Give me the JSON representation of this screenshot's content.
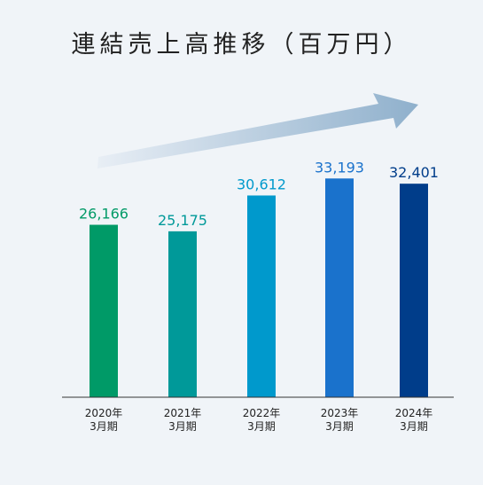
{
  "chart_data": {
    "type": "bar",
    "title": "連結売上高推移（百万円）",
    "categories": [
      [
        "2020年",
        "3月期"
      ],
      [
        "2021年",
        "3月期"
      ],
      [
        "2022年",
        "3月期"
      ],
      [
        "2023年",
        "3月期"
      ],
      [
        "2024年",
        "3月期"
      ]
    ],
    "values": [
      26166,
      25175,
      30612,
      33193,
      32401
    ],
    "value_labels": [
      "26,166",
      "25,175",
      "30,612",
      "33,193",
      "32,401"
    ],
    "bar_colors": [
      "#009a67",
      "#009999",
      "#0099cc",
      "#1a72cc",
      "#003d8a"
    ],
    "label_colors": [
      "#009a67",
      "#009999",
      "#0099cc",
      "#1a72cc",
      "#003d8a"
    ],
    "ylim": [
      0,
      37000
    ],
    "grid": false,
    "trend_arrow": {
      "from_color": "#e8eef5",
      "to_color": "#8fb0cc"
    },
    "xlabel": "",
    "ylabel": ""
  }
}
